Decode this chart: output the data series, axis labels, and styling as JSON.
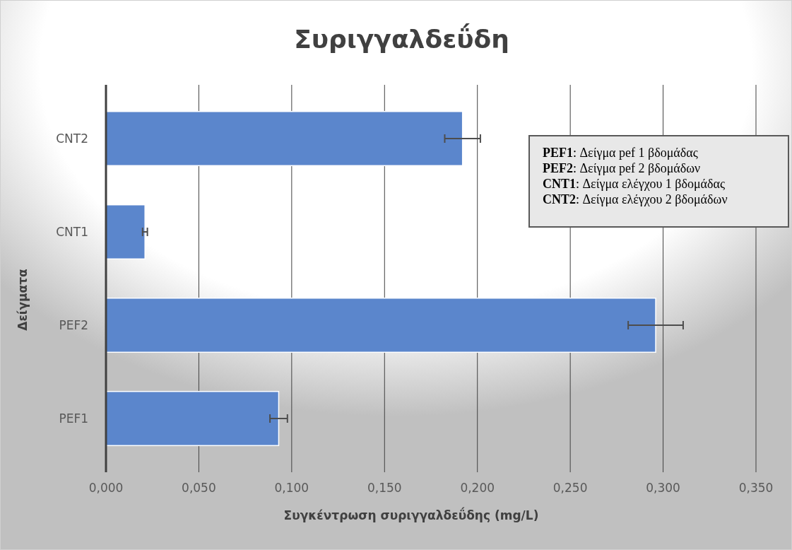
{
  "chart_data": {
    "type": "bar",
    "orientation": "horizontal",
    "title": "Συριγγαλδεΰδη",
    "xlabel": "Συγκέντρωση συριγγαλδεΰδης (mg/L)",
    "ylabel": "Δείγματα",
    "categories": [
      "CNT2",
      "CNT1",
      "PEF2",
      "PEF1"
    ],
    "values": [
      0.192,
      0.021,
      0.296,
      0.093
    ],
    "errors": [
      0.0096,
      0.0013,
      0.0148,
      0.0047
    ],
    "color": "#5b86cc",
    "xlim": [
      0,
      0.35
    ],
    "xticks": [
      {
        "value": 0,
        "label": "0,000"
      },
      {
        "value": 0.05,
        "label": "0,050"
      },
      {
        "value": 0.1,
        "label": "0,100"
      },
      {
        "value": 0.15,
        "label": "0,150"
      },
      {
        "value": 0.2,
        "label": "0,200"
      },
      {
        "value": 0.25,
        "label": "0,250"
      },
      {
        "value": 0.3,
        "label": "0,300"
      },
      {
        "value": 0.35,
        "label": "0,350"
      }
    ],
    "grid": "x",
    "annotations": [
      "PEF1: Δείγμα pef 1 βδομάδας",
      "PEF2: Δείγμα pef 2 βδομάδων",
      "CNT1: Δείγμα ελέγχου 1 βδομάδας",
      "CNT2: Δείγμα ελέγχου 2 βδομάδων"
    ]
  }
}
